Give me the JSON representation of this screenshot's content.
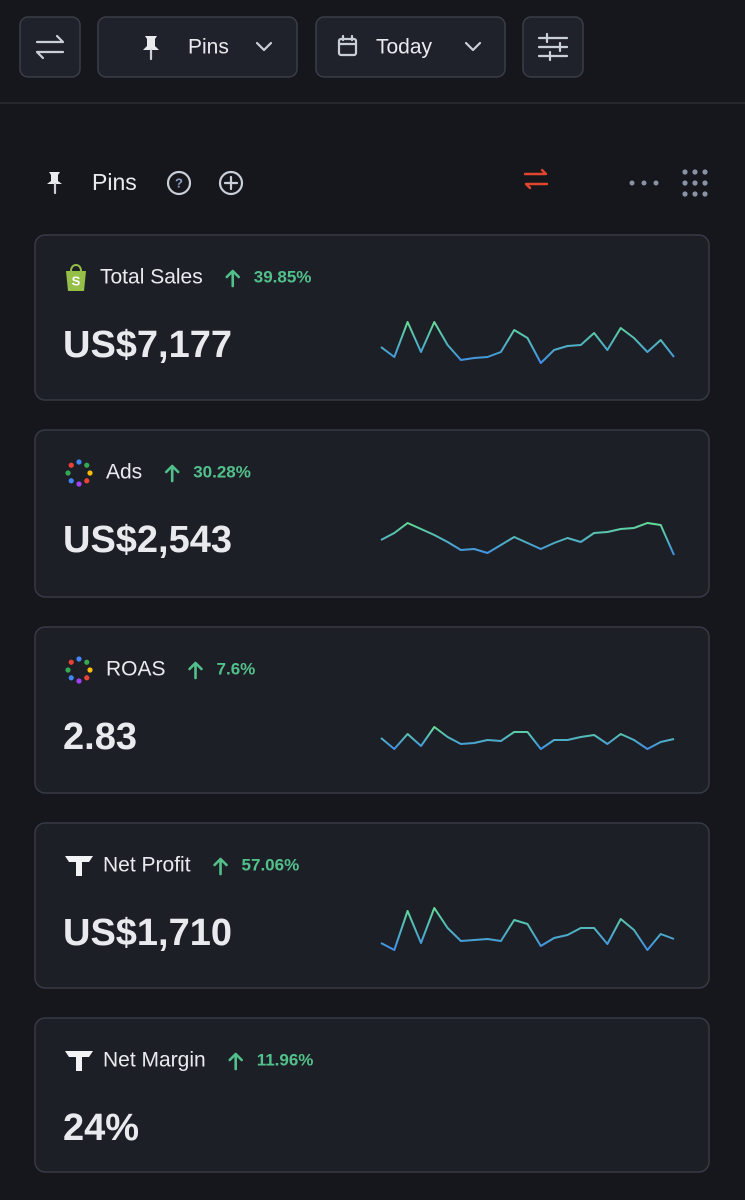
{
  "toolbar": {
    "pins_label": "Pins",
    "date_label": "Today"
  },
  "section": {
    "title": "Pins"
  },
  "cards": [
    {
      "title": "Total Sales",
      "change": "39.85%",
      "value": "US$7,177",
      "sparkline": [
        23,
        13,
        48,
        18,
        48,
        25,
        10,
        12,
        13,
        18,
        40,
        32,
        7,
        20,
        24,
        25,
        37,
        20,
        42,
        32,
        18,
        30,
        13
      ]
    },
    {
      "title": "Ads",
      "change": "30.28%",
      "value": "US$2,543",
      "sparkline": [
        25,
        32,
        42,
        36,
        30,
        23,
        15,
        16,
        12,
        20,
        28,
        22,
        16,
        22,
        27,
        23,
        32,
        33,
        36,
        37,
        42,
        40,
        10
      ]
    },
    {
      "title": "ROAS",
      "change": "7.6%",
      "value": "2.83",
      "sparkline": [
        24,
        13,
        28,
        16,
        35,
        25,
        18,
        19,
        22,
        21,
        30,
        30,
        13,
        22,
        22,
        25,
        27,
        18,
        28,
        22,
        13,
        20,
        23
      ]
    },
    {
      "title": "Net Profit",
      "change": "57.06%",
      "value": "US$1,710",
      "sparkline": [
        15,
        8,
        47,
        15,
        50,
        30,
        17,
        18,
        19,
        17,
        38,
        34,
        12,
        20,
        23,
        30,
        30,
        14,
        39,
        28,
        8,
        24,
        19
      ]
    },
    {
      "title": "Net Margin",
      "change": "11.96%",
      "value": "24%"
    }
  ]
}
